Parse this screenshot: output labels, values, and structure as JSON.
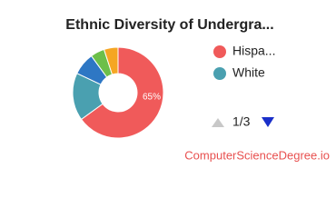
{
  "chart_data": {
    "type": "donut",
    "title": "Ethnic Diversity of Undergra...",
    "categories": [
      "Hispa...",
      "White",
      null,
      null,
      null
    ],
    "values": [
      65,
      17,
      8,
      5,
      5
    ],
    "value_labels": [
      "65%",
      null,
      null,
      null,
      null
    ],
    "colors": [
      "#f05a5a",
      "#4aa0b0",
      "#2e77c4",
      "#6cbf4a",
      "#f5a623"
    ],
    "legend_page": "1/3",
    "source": "ComputerScienceDegree.io"
  }
}
